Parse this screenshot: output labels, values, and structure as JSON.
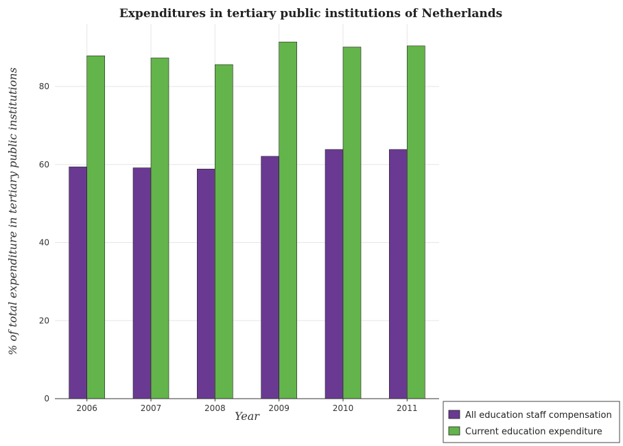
{
  "colors": {
    "series_1": "#6a3a92",
    "series_2": "#63b44a",
    "bar_edge": "#222222",
    "grid": "#e6e6e6"
  },
  "chart_data": {
    "type": "bar",
    "title": "Expenditures in tertiary public institutions of Netherlands",
    "xlabel": "Year",
    "ylabel": "% of total expenditure in tertiary public institutions",
    "categories": [
      "2006",
      "2007",
      "2008",
      "2009",
      "2010",
      "2011"
    ],
    "series": [
      {
        "name": "All education staff compensation",
        "values": [
          59.4,
          59.15,
          58.85,
          62.1,
          63.85,
          63.85
        ]
      },
      {
        "name": "Current education expenditure",
        "values": [
          87.85,
          87.3,
          85.6,
          91.4,
          90.1,
          90.4
        ]
      }
    ],
    "ylim": [
      0,
      96
    ],
    "yticks": [
      0,
      20,
      40,
      60,
      80
    ],
    "grid": true,
    "legend_position": "bottom-right"
  }
}
